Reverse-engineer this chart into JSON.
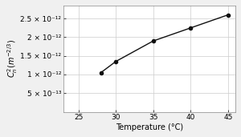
{
  "x": [
    28,
    30,
    35,
    40,
    45
  ],
  "y": [
    1.05e-12,
    1.35e-12,
    1.9e-12,
    2.25e-12,
    2.6e-12
  ],
  "xlabel": "Temperature (°C)",
  "ylabel": "Cₙ²(m⁻²/³)",
  "xlim": [
    23,
    46
  ],
  "ylim": [
    0,
    2.85e-12
  ],
  "xticks": [
    25,
    30,
    35,
    40,
    45
  ],
  "yticks": [
    5e-13,
    1e-12,
    1.5e-12,
    2e-12,
    2.5e-12
  ],
  "ytick_labels": [
    "5 × 10⁻¹³",
    "1 × 10⁻¹²",
    "1.5 × 10⁻¹²",
    "2 × 10⁻¹²",
    "2.5 × 10⁻¹²"
  ],
  "line_color": "#111111",
  "marker": "o",
  "marker_size": 3,
  "plot_bg": "#ffffff",
  "fig_bg": "#f0f0f0",
  "grid_color": "#cccccc",
  "label_fontsize": 7,
  "tick_fontsize": 6.5,
  "linewidth": 1.0
}
